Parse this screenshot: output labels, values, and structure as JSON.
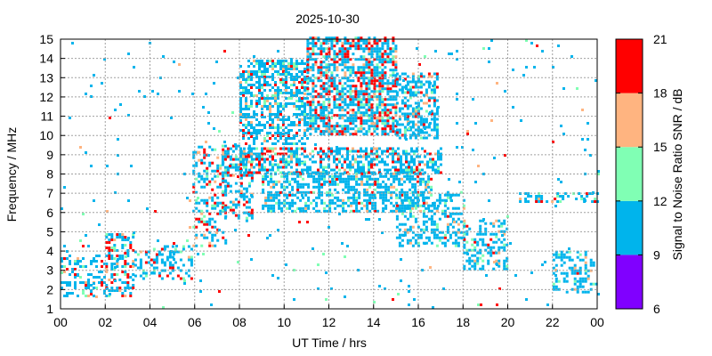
{
  "chart_data": {
    "type": "heatmap",
    "title": "2025-10-30",
    "xlabel": "UT Time / hrs",
    "ylabel": "Frequency / MHz",
    "colorbar_label": "Signal to Noise Ratio SNR / dB",
    "xlim": [
      0,
      24
    ],
    "ylim": [
      1,
      15
    ],
    "x_ticks": [
      "00",
      "02",
      "04",
      "06",
      "08",
      "10",
      "12",
      "14",
      "16",
      "18",
      "20",
      "22",
      "00"
    ],
    "y_ticks": [
      "1",
      "2",
      "3",
      "4",
      "5",
      "6",
      "7",
      "8",
      "9",
      "10",
      "11",
      "12",
      "13",
      "14",
      "15"
    ],
    "grid": true,
    "colorbar": {
      "ticks": [
        "6",
        "9",
        "12",
        "15",
        "18",
        "21"
      ],
      "bands": [
        {
          "from": 6,
          "to": 9,
          "color": "#8000ff"
        },
        {
          "from": 9,
          "to": 12,
          "color": "#00b4ec"
        },
        {
          "from": 12,
          "to": 15,
          "color": "#80ffb4"
        },
        {
          "from": 15,
          "to": 18,
          "color": "#ffb480"
        },
        {
          "from": 18,
          "to": 21,
          "color": "#ff0000"
        }
      ]
    },
    "regions": [
      {
        "x": [
          0.0,
          2.0
        ],
        "y": [
          1.6,
          3.7
        ],
        "density": 0.35,
        "hot": 0.1
      },
      {
        "x": [
          2.0,
          3.3
        ],
        "y": [
          1.6,
          4.8
        ],
        "density": 0.45,
        "hot": 0.25
      },
      {
        "x": [
          3.3,
          5.9
        ],
        "y": [
          2.5,
          4.2
        ],
        "density": 0.4,
        "hot": 0.12
      },
      {
        "x": [
          5.9,
          7.4
        ],
        "y": [
          4.2,
          9.4
        ],
        "density": 0.35,
        "hot": 0.22
      },
      {
        "x": [
          7.2,
          8.6
        ],
        "y": [
          5.5,
          9.5
        ],
        "density": 0.4,
        "hot": 0.15
      },
      {
        "x": [
          8.0,
          11.0
        ],
        "y": [
          9.5,
          13.8
        ],
        "density": 0.55,
        "hot": 0.08
      },
      {
        "x": [
          11.0,
          15.0
        ],
        "y": [
          10.0,
          15.0
        ],
        "density": 0.65,
        "hot": 0.25
      },
      {
        "x": [
          15.0,
          16.8
        ],
        "y": [
          9.8,
          13.2
        ],
        "density": 0.55,
        "hot": 0.08
      },
      {
        "x": [
          8.0,
          17.0
        ],
        "y": [
          8.0,
          9.3
        ],
        "density": 0.55,
        "hot": 0.2
      },
      {
        "x": [
          9.0,
          16.6
        ],
        "y": [
          6.0,
          8.0
        ],
        "density": 0.55,
        "hot": 0.06
      },
      {
        "x": [
          15.0,
          18.0
        ],
        "y": [
          4.2,
          7.0
        ],
        "density": 0.4,
        "hot": 0.04
      },
      {
        "x": [
          18.0,
          20.0
        ],
        "y": [
          3.0,
          5.6
        ],
        "density": 0.4,
        "hot": 0.04
      },
      {
        "x": [
          22.0,
          24.0
        ],
        "y": [
          1.8,
          4.0
        ],
        "density": 0.4,
        "hot": 0.03
      },
      {
        "x": [
          20.5,
          24.0
        ],
        "y": [
          6.5,
          7.0
        ],
        "density": 0.35,
        "hot": 0.15
      },
      {
        "x": [
          0.0,
          24.0
        ],
        "y": [
          1.0,
          15.0
        ],
        "density": 0.015,
        "hot": 0.1
      }
    ]
  }
}
